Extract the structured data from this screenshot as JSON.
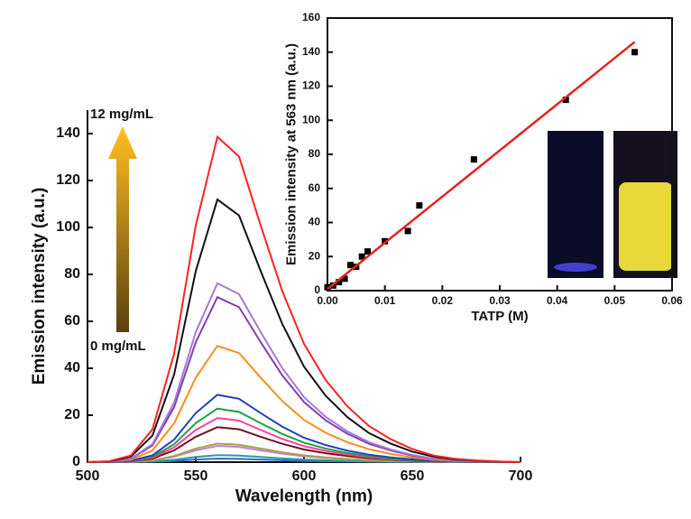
{
  "chart_data": [
    {
      "type": "line",
      "x_label": "Wavelength (nm)",
      "y_label": "Emission intensity (a.u.)",
      "annotations": [
        "12 mg/mL",
        "0 mg/mL"
      ],
      "x": [
        500,
        510,
        520,
        530,
        540,
        550,
        560,
        570,
        580,
        590,
        600,
        610,
        620,
        630,
        640,
        650,
        660,
        670,
        680,
        690,
        700
      ],
      "xlim": [
        500,
        700
      ],
      "xticks": [
        500,
        550,
        600,
        650,
        700
      ],
      "ylim": [
        0,
        150
      ],
      "yticks": [
        0,
        20,
        40,
        60,
        80,
        100,
        120,
        140
      ],
      "series": [
        {
          "color": "#ff2222",
          "values": [
            0,
            0.4,
            2.8,
            14,
            46.2,
            100.8,
            138.6,
            130.2,
            100.8,
            72.8,
            50.4,
            35,
            23.8,
            15.4,
            9.8,
            5.6,
            2.8,
            1.4,
            0.7,
            0.3,
            0
          ]
        },
        {
          "color": "#111111",
          "values": [
            0,
            0.3,
            2.3,
            11.3,
            37.3,
            81.4,
            111.9,
            105.1,
            81.4,
            58.8,
            40.7,
            28.3,
            19.2,
            12.4,
            7.9,
            4.5,
            2.3,
            1.1,
            0.6,
            0.2,
            0
          ]
        },
        {
          "color": "#a57ad6",
          "values": [
            0,
            0.2,
            1.5,
            7.7,
            25.4,
            55.4,
            76.2,
            71.6,
            55.4,
            40,
            27.7,
            19.3,
            13.1,
            8.5,
            5.4,
            3.1,
            1.5,
            0.8,
            0.4,
            0.2,
            0
          ]
        },
        {
          "color": "#8040b0",
          "values": [
            0,
            0.2,
            1.4,
            7.1,
            23.4,
            51.1,
            70.3,
            66,
            51.1,
            36.9,
            25.6,
            17.8,
            12.1,
            7.8,
            5,
            2.8,
            1.4,
            0.7,
            0.4,
            0.1,
            0
          ]
        },
        {
          "color": "#ff8c1a",
          "values": [
            0,
            0.2,
            1,
            5,
            16.5,
            36,
            49.5,
            46.5,
            36,
            26,
            18,
            12.5,
            8.5,
            5.5,
            3.5,
            2,
            1,
            0.5,
            0.3,
            0.1,
            0
          ]
        },
        {
          "color": "#2040c0",
          "values": [
            0,
            0.1,
            0.6,
            2.9,
            9.6,
            20.9,
            28.7,
            27,
            20.9,
            15.1,
            10.4,
            7.3,
            4.9,
            3.2,
            2,
            1.2,
            0.6,
            0.3,
            0.1,
            0.1,
            0
          ]
        },
        {
          "color": "#20a040",
          "values": [
            0,
            0.1,
            0.5,
            2.3,
            7.6,
            16.6,
            22.8,
            21.4,
            16.6,
            12,
            8.3,
            5.8,
            3.9,
            2.5,
            1.6,
            0.9,
            0.5,
            0.2,
            0.1,
            0,
            0
          ]
        },
        {
          "color": "#ff40a0",
          "values": [
            0,
            0.1,
            0.4,
            1.9,
            6.3,
            13.7,
            18.8,
            17.7,
            13.7,
            9.9,
            6.8,
            4.8,
            3.2,
            2.1,
            1.3,
            0.8,
            0.4,
            0.2,
            0.1,
            0,
            0
          ]
        },
        {
          "color": "#701020",
          "values": [
            0,
            0,
            0.3,
            1.5,
            5,
            10.8,
            14.9,
            14,
            10.8,
            7.8,
            5.4,
            3.8,
            2.6,
            1.7,
            1.1,
            0.6,
            0.3,
            0.2,
            0.1,
            0,
            0
          ]
        },
        {
          "color": "#b0a040",
          "values": [
            0,
            0,
            0.2,
            0.8,
            2.6,
            5.8,
            7.9,
            7.4,
            5.8,
            4.2,
            2.9,
            2,
            1.4,
            0.9,
            0.6,
            0.3,
            0.2,
            0.1,
            0,
            0,
            0
          ]
        },
        {
          "color": "#c080e0",
          "values": [
            0,
            0,
            0.1,
            0.7,
            2.3,
            5,
            6.9,
            6.5,
            5,
            3.6,
            2.5,
            1.8,
            1.2,
            0.8,
            0.5,
            0.3,
            0.1,
            0.1,
            0,
            0,
            0
          ]
        },
        {
          "color": "#20a0a0",
          "values": [
            0,
            0,
            0.1,
            0.3,
            1,
            2.2,
            3,
            2.8,
            2.2,
            1.6,
            1.1,
            0.8,
            0.5,
            0.3,
            0.2,
            0.1,
            0.1,
            0,
            0,
            0,
            0
          ]
        },
        {
          "color": "#4060c0",
          "values": [
            0,
            0,
            0,
            0.2,
            0.5,
            1.1,
            1.5,
            1.4,
            1.1,
            0.8,
            0.5,
            0.4,
            0.3,
            0.2,
            0.1,
            0.1,
            0,
            0,
            0,
            0,
            0
          ]
        }
      ]
    },
    {
      "type": "scatter",
      "x_label": "TATP (M)",
      "y_label": "Emission intensity at 563 nm (a.u.)",
      "xlim": [
        0,
        0.06
      ],
      "xticks": [
        {
          "value": 0,
          "label": "0.00"
        },
        {
          "value": 0.01,
          "label": "0.01"
        },
        {
          "value": 0.02,
          "label": "0.02"
        },
        {
          "value": 0.03,
          "label": "0.03"
        },
        {
          "value": 0.04,
          "label": "0.04"
        },
        {
          "value": 0.05,
          "label": "0.05"
        },
        {
          "value": 0.06,
          "label": "0.06"
        }
      ],
      "ylim": [
        0,
        160
      ],
      "yticks": [
        0,
        20,
        40,
        60,
        80,
        100,
        120,
        140,
        160
      ],
      "series": [
        {
          "mode": "markers",
          "color": "#000000",
          "x": [
            0,
            0.001,
            0.002,
            0.003,
            0.004,
            0.005,
            0.006,
            0.007,
            0.01,
            0.014,
            0.016,
            0.0255,
            0.0415,
            0.0535
          ],
          "values": [
            2,
            3,
            5,
            7,
            15,
            14,
            20,
            23,
            29,
            35,
            50,
            77,
            112,
            140
          ]
        },
        {
          "mode": "line",
          "color": "#e82020",
          "x": [
            0,
            0.0535
          ],
          "values": [
            1,
            146
          ]
        }
      ]
    }
  ]
}
